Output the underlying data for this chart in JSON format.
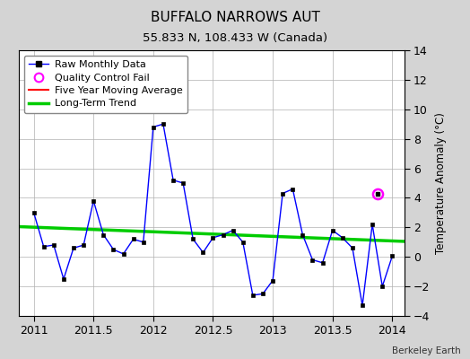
{
  "title": "BUFFALO NARROWS AUT",
  "subtitle": "55.833 N, 108.433 W (Canada)",
  "watermark": "Berkeley Earth",
  "ylabel_right": "Temperature Anomaly (°C)",
  "ylim": [
    -4,
    14
  ],
  "xlim": [
    2010.875,
    2014.1
  ],
  "yticks": [
    -4,
    -2,
    0,
    2,
    4,
    6,
    8,
    10,
    12,
    14
  ],
  "xticks": [
    2011,
    2011.5,
    2012,
    2012.5,
    2013,
    2013.5,
    2014
  ],
  "xticklabels": [
    "2011",
    "2011.5",
    "2012",
    "2012.5",
    "2013",
    "2013.5",
    "2014"
  ],
  "raw_x": [
    2011.0,
    2011.083,
    2011.167,
    2011.25,
    2011.333,
    2011.417,
    2011.5,
    2011.583,
    2011.667,
    2011.75,
    2011.833,
    2011.917,
    2012.0,
    2012.083,
    2012.167,
    2012.25,
    2012.333,
    2012.417,
    2012.5,
    2012.583,
    2012.667,
    2012.75,
    2012.833,
    2012.917,
    2013.0,
    2013.083,
    2013.167,
    2013.25,
    2013.333,
    2013.417,
    2013.5,
    2013.583,
    2013.667,
    2013.75,
    2013.833,
    2013.917,
    2014.0
  ],
  "raw_y": [
    3.0,
    0.7,
    0.8,
    -1.5,
    0.6,
    0.8,
    3.8,
    1.5,
    0.5,
    0.2,
    1.2,
    1.0,
    8.8,
    9.0,
    5.2,
    5.0,
    1.2,
    0.3,
    1.3,
    1.5,
    1.8,
    1.0,
    -2.6,
    -2.5,
    -1.6,
    4.3,
    4.6,
    1.5,
    -0.2,
    -0.4,
    1.8,
    1.3,
    0.6,
    -3.3,
    2.2,
    -2.0,
    0.05
  ],
  "qc_fail_x": [
    2013.875
  ],
  "qc_fail_y": [
    4.3
  ],
  "trend_x": [
    2010.875,
    2014.1
  ],
  "trend_y": [
    2.05,
    1.05
  ],
  "raw_line_color": "#0000ff",
  "raw_marker_color": "#000000",
  "trend_color": "#00cc00",
  "moving_avg_color": "#ff0000",
  "qc_color": "#ff00ff",
  "background_color": "#d4d4d4",
  "plot_bg_color": "#ffffff",
  "grid_color": "#b0b0b0"
}
